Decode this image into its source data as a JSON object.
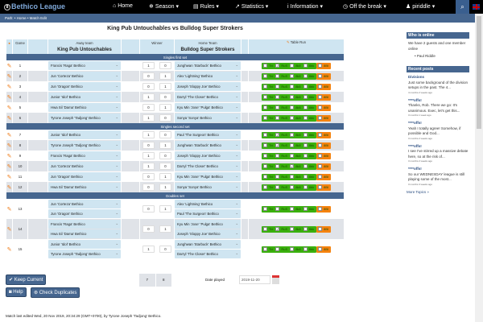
{
  "nav": {
    "brand": "Bethico League",
    "items": [
      {
        "icon": "home-icon",
        "glyph": "⌂",
        "label": "Home"
      },
      {
        "icon": "snowflake-icon",
        "glyph": "❄",
        "label": "Season ▾"
      },
      {
        "icon": "document-icon",
        "glyph": "▤",
        "label": "Rules ▾"
      },
      {
        "icon": "chart-icon",
        "glyph": "↗",
        "label": "Statistics ▾"
      },
      {
        "icon": "info-icon",
        "glyph": "i",
        "label": "Information ▾"
      },
      {
        "icon": "clock-icon",
        "glyph": "◷",
        "label": "Off the break ▾"
      },
      {
        "icon": "user-icon",
        "glyph": "♟",
        "label": "piriddle ▾"
      }
    ]
  },
  "path": "Path: • Home • Match Edit",
  "title": "King Pub Untouchables vs Bulldog Super Strokers",
  "headers": {
    "game": "Game",
    "away": "Away team",
    "winner": "Winner",
    "home": "Home Team",
    "run": "Table Run"
  },
  "teams": {
    "away": "King Pub Untouchables",
    "home": "Bulldog Super Strokers"
  },
  "run_labels": [
    "Tbl",
    "RuS",
    "8k8",
    "8bk",
    "8BI"
  ],
  "sets": [
    {
      "name": "Singles first set",
      "games": [
        {
          "n": "1",
          "away": [
            "Francis 'Raga' Bethico"
          ],
          "home": [
            "Junghwan 'Starbuck' Bethico"
          ],
          "score": [
            "1",
            "0"
          ],
          "checks": [
            false,
            true,
            false,
            false,
            false
          ]
        },
        {
          "n": "2",
          "away": [
            "Jun 'Corteza' Bethico"
          ],
          "home": [
            "Alex 'Lightning' Bethico"
          ],
          "score": [
            "0",
            "1"
          ],
          "checks": [
            false,
            false,
            false,
            false,
            false
          ]
        },
        {
          "n": "3",
          "away": [
            "Jun 'Oragon' Bethico"
          ],
          "home": [
            "Joseph 'Sloppy Joe' Bethico"
          ],
          "score": [
            "0",
            "1"
          ],
          "checks": [
            false,
            false,
            false,
            false,
            false
          ]
        },
        {
          "n": "4",
          "away": [
            "Junior 'Idol' Bethico"
          ],
          "home": [
            "Darryl 'The Closer' Bethico"
          ],
          "score": [
            "1",
            "0"
          ],
          "checks": [
            false,
            false,
            false,
            false,
            false
          ]
        },
        {
          "n": "5",
          "away": [
            "Hwa Sil 'Dama' Bethico"
          ],
          "home": [
            "Kyu Min 'Jose' 'Pulga' Bethico"
          ],
          "score": [
            "0",
            "1"
          ],
          "checks": [
            false,
            false,
            false,
            false,
            false
          ]
        },
        {
          "n": "6",
          "away": [
            "Tyrone Joseph 'Tadjong' Bethico"
          ],
          "home": [
            "Sonya 'Sonya' Bethico"
          ],
          "score": [
            "1",
            "0"
          ],
          "checks": [
            false,
            false,
            false,
            false,
            false
          ]
        }
      ]
    },
    {
      "name": "Singles second set",
      "games": [
        {
          "n": "7",
          "away": [
            "Junior 'Idol' Bethico"
          ],
          "home": [
            "Paul 'The Surgeon' Bethico"
          ],
          "score": [
            "1",
            "0"
          ],
          "checks": [
            false,
            true,
            false,
            false,
            false
          ]
        },
        {
          "n": "8",
          "away": [
            "Tyrone Joseph 'Tadjong' Bethico"
          ],
          "home": [
            "Junghwan 'Starbuck' Bethico"
          ],
          "score": [
            "0",
            "1"
          ],
          "checks": [
            false,
            true,
            false,
            false,
            false
          ]
        },
        {
          "n": "9",
          "away": [
            "Francis 'Raga' Bethico"
          ],
          "home": [
            "Joseph 'Sloppy Joe' Bethico"
          ],
          "score": [
            "1",
            "0"
          ],
          "checks": [
            false,
            false,
            false,
            false,
            false
          ]
        },
        {
          "n": "10",
          "away": [
            "Jun 'Corteza' Bethico"
          ],
          "home": [
            "Darryl 'The Closer' Bethico"
          ],
          "score": [
            "1",
            "0"
          ],
          "checks": [
            false,
            false,
            true,
            false,
            false
          ]
        },
        {
          "n": "11",
          "away": [
            "Jun 'Oragon' Bethico"
          ],
          "home": [
            "Kyu Min 'Jose' 'Pulga' Bethico"
          ],
          "score": [
            "0",
            "1"
          ],
          "checks": [
            false,
            false,
            false,
            false,
            false
          ]
        },
        {
          "n": "12",
          "away": [
            "Hwa Sil 'Dama' Bethico"
          ],
          "home": [
            "Sonya 'Sonya' Bethico"
          ],
          "score": [
            "0",
            "1"
          ],
          "checks": [
            false,
            false,
            false,
            false,
            false
          ]
        }
      ]
    },
    {
      "name": "Doubles set",
      "games": [
        {
          "n": "13",
          "away": [
            "Jun 'Corteza' Bethico",
            "Jun 'Oragon' Bethico"
          ],
          "home": [
            "Alex 'Lightning' Bethico",
            "Paul 'The Surgeon' Bethico"
          ],
          "score": [
            "0",
            "1"
          ],
          "checks": [
            false,
            false,
            false,
            false,
            false
          ]
        },
        {
          "n": "14",
          "away": [
            "Francis 'Raga' Bethico",
            "Hwa Sil 'Dama' Bethico"
          ],
          "home": [
            "Kyu Min 'Jose' 'Pulga' Bethico",
            "Joseph 'Sloppy Joe' Bethico"
          ],
          "score": [
            "0",
            "1"
          ],
          "checks": [
            false,
            true,
            false,
            false,
            false
          ]
        },
        {
          "n": "15",
          "away": [
            "Junior 'Idol' Bethico",
            "Tyrone Joseph 'Tadjong' Bethico"
          ],
          "home": [
            "Junghwan 'Starbuck' Bethico",
            "Darryl 'The Closer' Bethico"
          ],
          "score": [
            "1",
            "0"
          ],
          "checks": [
            false,
            false,
            false,
            false,
            false
          ]
        }
      ]
    }
  ],
  "totals": [
    "7",
    "8"
  ],
  "date": {
    "label": "Date played",
    "value": "2019-11-20"
  },
  "buttons": {
    "keep": "✔ Keep Current",
    "help": "Help",
    "dup": "Check Duplicates"
  },
  "footer": "Match last edited Wed, 20 Nov 2019, 20:34:29 (GMT+0700), by Tyrone Joseph 'Tadjong' Bethico.",
  "sidebar": {
    "online_title": "Who is online",
    "online_text": "We have 2 guests and one member online",
    "online_user": "Paul Riddle",
    "posts_title": "Recent posts",
    "posts": [
      {
        "title": "Divisions",
        "text": "Just some background of the division setups in the past. The 4...",
        "ago": "4 months 2 weeks ago"
      },
      {
        "title": "****offs!",
        "text": "Thanks, Rob. There we go: It's unanimous. Exec, let's get this...",
        "ago": "3 months 1 week ago"
      },
      {
        "title": "****offs!",
        "text": "Yeah I totally agree! Somehow, if possible and God...",
        "ago": "3 months 2 weeks ago"
      },
      {
        "title": "****offs!",
        "text": "I see I've stirred up a massive debate here, so at the risk of...",
        "ago": "3 months 2 weeks ago"
      },
      {
        "title": "****offs!",
        "text": "So our WEDNESDAY league is still playing some of the most...",
        "ago": "3 months 3 weeks ago"
      }
    ],
    "more": "More Topics »"
  }
}
